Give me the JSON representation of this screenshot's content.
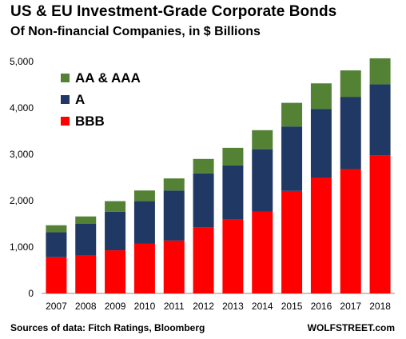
{
  "header": {
    "title": "US & EU Investment-Grade Corporate Bonds",
    "subtitle": "Of Non-financial Companies, in $ Billions"
  },
  "footer": {
    "source": "Sources of data: Fitch Ratings, Bloomberg",
    "brand": "WOLFSTREET.com"
  },
  "colors": {
    "BBB": "#ff0000",
    "A": "#203864",
    "AA & AAA": "#548235"
  },
  "chart_data": {
    "type": "bar",
    "stacked": true,
    "title": "US & EU Investment-Grade Corporate Bonds",
    "subtitle": "Of Non-financial Companies, in $ Billions",
    "xlabel": "",
    "ylabel": "",
    "ylim": [
      0,
      5000
    ],
    "yticks": [
      0,
      1000,
      2000,
      3000,
      4000,
      5000
    ],
    "ytick_labels": [
      "0",
      "1,000",
      "2,000",
      "3,000",
      "4,000",
      "5,000"
    ],
    "grid": false,
    "legend_position": "top-left",
    "categories": [
      "2007",
      "2008",
      "2009",
      "2010",
      "2011",
      "2012",
      "2013",
      "2014",
      "2015",
      "2016",
      "2017",
      "2018"
    ],
    "series": [
      {
        "name": "BBB",
        "values": [
          780,
          820,
          930,
          1070,
          1140,
          1430,
          1590,
          1760,
          2210,
          2500,
          2680,
          2970
        ]
      },
      {
        "name": "A",
        "values": [
          540,
          680,
          830,
          920,
          1080,
          1160,
          1170,
          1350,
          1390,
          1480,
          1560,
          1540
        ]
      },
      {
        "name": "AA & AAA",
        "values": [
          150,
          160,
          230,
          230,
          260,
          310,
          380,
          410,
          510,
          550,
          570,
          560
        ]
      }
    ],
    "legend_order": [
      "AA & AAA",
      "A",
      "BBB"
    ]
  }
}
